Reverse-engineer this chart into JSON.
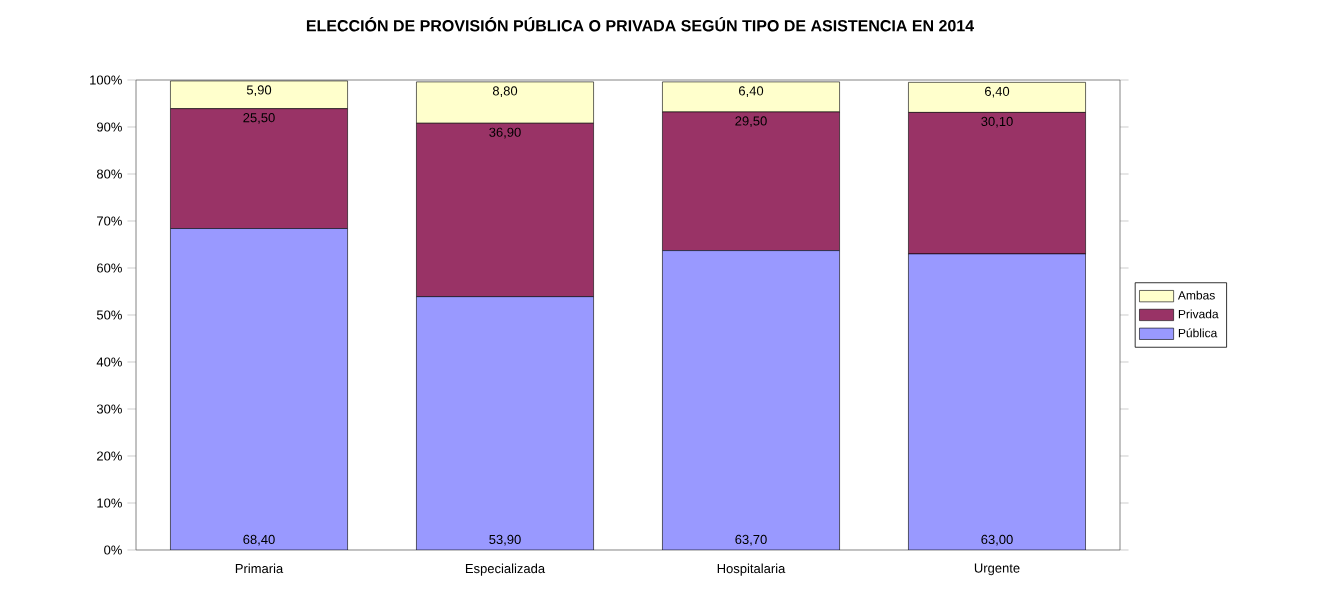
{
  "chart_data": {
    "type": "bar",
    "stacked": true,
    "title": "ELECCIÓN DE PROVISIÓN PÚBLICA O PRIVADA SEGÚN TIPO DE ASISTENCIA EN 2014",
    "categories": [
      "Primaria",
      "Especializada",
      "Hospitalaria",
      "Urgente"
    ],
    "series": [
      {
        "name": "Pública",
        "color": "#9999ff",
        "values": [
          68.4,
          53.9,
          63.7,
          63.0
        ],
        "value_labels": [
          "68,40",
          "53,90",
          "63,70",
          "63,00"
        ]
      },
      {
        "name": "Privada",
        "color": "#993366",
        "values": [
          25.5,
          36.9,
          29.5,
          30.1
        ],
        "value_labels": [
          "25,50",
          "36,90",
          "29,50",
          "30,10"
        ]
      },
      {
        "name": "Ambas",
        "color": "#ffffcc",
        "values": [
          5.9,
          8.8,
          6.4,
          6.4
        ],
        "value_labels": [
          "5,90",
          "8,80",
          "6,40",
          "6,40"
        ]
      }
    ],
    "ylim": [
      0,
      100
    ],
    "yticks": [
      {
        "value": 0,
        "label": "0%"
      },
      {
        "value": 10,
        "label": "10%"
      },
      {
        "value": 20,
        "label": "20%"
      },
      {
        "value": 30,
        "label": "30%"
      },
      {
        "value": 40,
        "label": "40%"
      },
      {
        "value": 50,
        "label": "50%"
      },
      {
        "value": 60,
        "label": "60%"
      },
      {
        "value": 70,
        "label": "70%"
      },
      {
        "value": 80,
        "label": "80%"
      },
      {
        "value": 90,
        "label": "90%"
      },
      {
        "value": 100,
        "label": "100%"
      }
    ],
    "legend": "right",
    "grid": false
  }
}
